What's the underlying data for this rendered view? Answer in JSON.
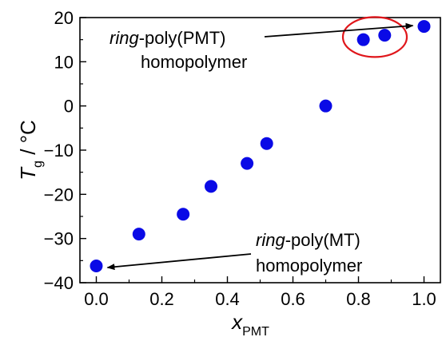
{
  "chart_data": {
    "type": "scatter",
    "xlabel": "x",
    "xlabel_sub": "PMT",
    "ylabel": "T",
    "ylabel_sub": "g",
    "ylabel_unit": "/ °C",
    "xlim": [
      -0.05,
      1.05
    ],
    "ylim": [
      -40,
      20
    ],
    "xticks": [
      0.0,
      0.2,
      0.4,
      0.6,
      0.8,
      1.0
    ],
    "xtick_labels": [
      "0.0",
      "0.2",
      "0.4",
      "0.6",
      "0.8",
      "1.0"
    ],
    "yticks": [
      -40,
      -30,
      -20,
      -10,
      0,
      10,
      20
    ],
    "ytick_labels": [
      "−40",
      "−30",
      "−20",
      "−10",
      "0",
      "10",
      "20"
    ],
    "grid": false,
    "marker_color": "#0a0ae6",
    "highlight_color": "#e0161b",
    "series": [
      {
        "x": [
          0.0,
          0.13,
          0.265,
          0.35,
          0.46,
          0.52,
          0.7,
          0.815,
          0.88,
          1.0
        ],
        "y": [
          -36.2,
          -29.0,
          -24.5,
          -18.2,
          -13.0,
          -8.5,
          0.0,
          15.0,
          16.0,
          18.0
        ]
      }
    ],
    "annotations": [
      {
        "italic": "ring",
        "text": "-poly(PMT)",
        "line2": "homopolymer",
        "target": [
          1.0,
          18.0
        ]
      },
      {
        "italic": "ring",
        "text": "-poly(MT)",
        "line2": "homopolymer",
        "target": [
          0.0,
          -36.2
        ]
      }
    ]
  }
}
